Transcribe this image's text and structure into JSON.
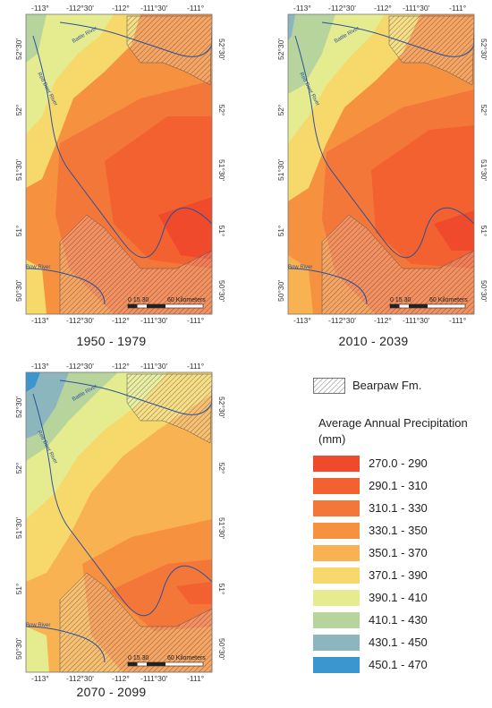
{
  "colors": {
    "c1": "#ef4a2c",
    "c2": "#f2612f",
    "c3": "#f4773a",
    "c4": "#f6913f",
    "c5": "#f8b251",
    "c6": "#f7d86a",
    "c7": "#e5ec8f",
    "c8": "#b8d49d",
    "c9": "#8cb6bd",
    "c10": "#3b95cf",
    "river": "#2b4f9a",
    "bearpaw_hatch": "#444444"
  },
  "maps": [
    {
      "period": "1950 - 1979",
      "top_ticks": [
        "-113°",
        "-112°30'",
        "-112°",
        "-111°30'",
        "-111°"
      ],
      "bottom_ticks": [
        "-113°",
        "-112°30'",
        "-112°",
        "-111°30'",
        "-111°"
      ],
      "left_ticks": [
        "52°30'",
        "52°",
        "51°30'",
        "51°",
        "50°30'"
      ],
      "right_ticks": [
        "52°30'",
        "52°",
        "51°30'",
        "51°",
        "50°30'"
      ],
      "rivers": {
        "battle": "Battle River",
        "red_deer": "Red Deer River",
        "bow": "Bow River"
      },
      "scale": {
        "numbers": "0  15  30",
        "end": "60 Kilometers"
      }
    },
    {
      "period": "2010 - 2039",
      "top_ticks": [
        "-113°",
        "-112°30'",
        "-112°",
        "-111°30'",
        "-111°"
      ],
      "bottom_ticks": [
        "-113°",
        "-112°30'",
        "-112°",
        "-111°30'",
        "-111°"
      ],
      "left_ticks": [
        "52°30'",
        "52°",
        "51°30'",
        "51°",
        "50°30'"
      ],
      "right_ticks": [
        "52°30'",
        "52°",
        "51°30'",
        "51°",
        "50°30'"
      ],
      "rivers": {
        "battle": "Battle River",
        "red_deer": "Red Deer River",
        "bow": "Bow River"
      },
      "scale": {
        "numbers": "0  15  30",
        "end": "60 Kilometers"
      }
    },
    {
      "period": "2070 - 2099",
      "top_ticks": [
        "-113°",
        "-112°30'",
        "-112°",
        "-111°30'",
        "-111°"
      ],
      "bottom_ticks": [
        "-113°",
        "-112°30'",
        "-112°",
        "-111°30'",
        "-111°"
      ],
      "left_ticks": [
        "52°30'",
        "52°",
        "51°30'",
        "51°",
        "50°30'"
      ],
      "right_ticks": [
        "52°30'",
        "52°",
        "51°30'",
        "51°",
        "50°30'"
      ],
      "rivers": {
        "battle": "Battle River",
        "red_deer": "Red Deer River",
        "bow": "Bow River"
      },
      "scale": {
        "numbers": "0  15  30",
        "end": "60 Kilometers"
      }
    }
  ],
  "legend": {
    "bearpaw_label": "Bearpaw Fm.",
    "title": "Average Annual Precipitation (mm)",
    "classes": [
      {
        "label": "270.0 - 290",
        "color": "#ef4a2c"
      },
      {
        "label": "290.1 - 310",
        "color": "#f2612f"
      },
      {
        "label": "310.1 - 330",
        "color": "#f4773a"
      },
      {
        "label": "330.1 - 350",
        "color": "#f6913f"
      },
      {
        "label": "350.1 - 370",
        "color": "#f8b251"
      },
      {
        "label": "370.1 - 390",
        "color": "#f7d86a"
      },
      {
        "label": "390.1 - 410",
        "color": "#e5ec8f"
      },
      {
        "label": "410.1 - 430",
        "color": "#b8d49d"
      },
      {
        "label": "430.1 - 450",
        "color": "#8cb6bd"
      },
      {
        "label": "450.1 - 470",
        "color": "#3b95cf"
      }
    ]
  }
}
